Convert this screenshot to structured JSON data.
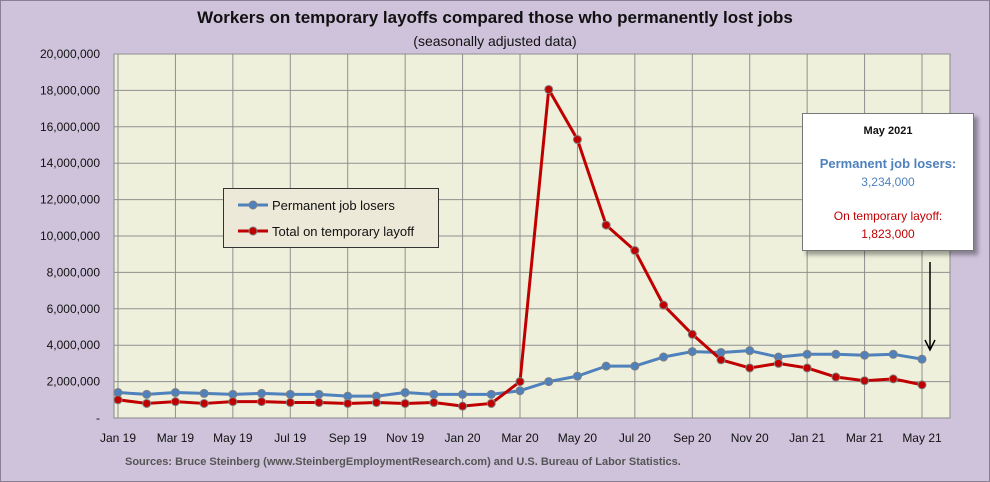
{
  "chart_data": {
    "type": "line",
    "title": "Workers on temporary layoffs compared those who permanently lost jobs",
    "subtitle": "(seasonally adjusted data)",
    "x": [
      "Jan 19",
      "Feb 19",
      "Mar 19",
      "Apr 19",
      "May 19",
      "Jun 19",
      "Jul 19",
      "Aug 19",
      "Sep 19",
      "Oct 19",
      "Nov 19",
      "Dec 19",
      "Jan 20",
      "Feb 20",
      "Mar 20",
      "Apr 20",
      "May 20",
      "Jun 20",
      "Jul 20",
      "Aug 20",
      "Sep 20",
      "Oct 20",
      "Nov 20",
      "Dec 20",
      "Jan 21",
      "Feb 21",
      "Mar 21",
      "Apr 21",
      "May 21"
    ],
    "x_tick_labels": [
      "Jan 19",
      "Mar 19",
      "May 19",
      "Jul 19",
      "Sep 19",
      "Nov 19",
      "Jan 20",
      "Mar 20",
      "May 20",
      "Jul 20",
      "Sep 20",
      "Nov 20",
      "Jan 21",
      "Mar 21",
      "May 21"
    ],
    "ylim": [
      0,
      20000000
    ],
    "y_tick_labels": [
      "-",
      "2,000,000",
      "4,000,000",
      "6,000,000",
      "8,000,000",
      "10,000,000",
      "12,000,000",
      "14,000,000",
      "16,000,000",
      "18,000,000",
      "20,000,000"
    ],
    "grid": true,
    "legend": "left-middle",
    "series": [
      {
        "name": "Permanent job losers",
        "color": "#4f81bd",
        "values": [
          1400000,
          1300000,
          1400000,
          1350000,
          1300000,
          1350000,
          1300000,
          1300000,
          1200000,
          1200000,
          1400000,
          1300000,
          1300000,
          1300000,
          1500000,
          2000000,
          2300000,
          2850000,
          2850000,
          3350000,
          3650000,
          3600000,
          3700000,
          3350000,
          3500000,
          3500000,
          3450000,
          3500000,
          3234000
        ]
      },
      {
        "name": "Total on temporary layoff",
        "color": "#c00000",
        "values": [
          1000000,
          800000,
          900000,
          800000,
          900000,
          900000,
          850000,
          850000,
          800000,
          850000,
          800000,
          850000,
          650000,
          800000,
          2000000,
          18050000,
          15300000,
          10600000,
          9200000,
          6200000,
          4600000,
          3200000,
          2750000,
          3000000,
          2750000,
          2250000,
          2050000,
          2150000,
          1823000
        ]
      }
    ],
    "callout": {
      "month": "May  2021",
      "perm_label": "Permanent job losers:",
      "perm_value": "3,234,000",
      "temp_label": "On temporary layoff:",
      "temp_value": "1,823,000"
    },
    "source": "Sources: Bruce Steinberg (www.SteinbergEmploymentResearch.com) and U.S. Bureau of Labor Statistics.",
    "colors": {
      "plot_bg": "#eef0dc",
      "page_bg": "#cfc3dc",
      "grid": "#8f8f8f"
    }
  }
}
